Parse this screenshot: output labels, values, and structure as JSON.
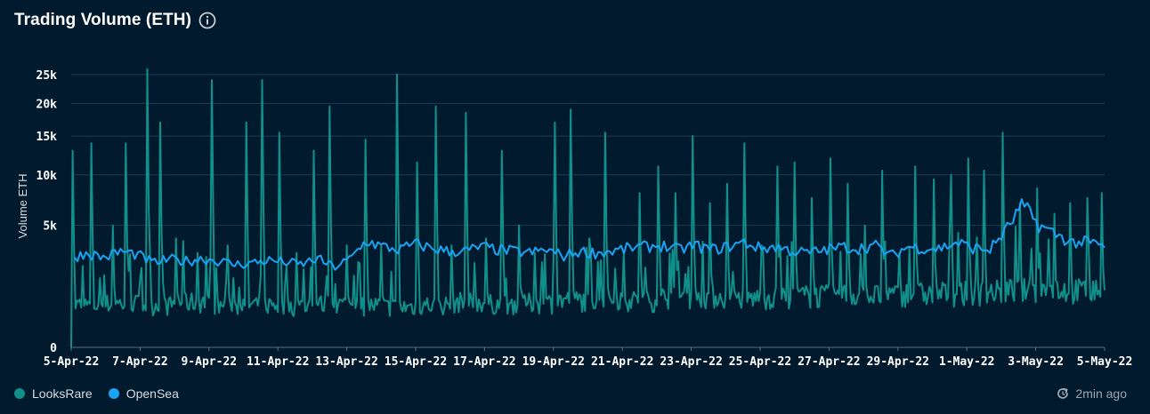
{
  "header": {
    "title": "Trading Volume (ETH)",
    "info_icon": "info-icon"
  },
  "footer": {
    "updated_text": "2min ago",
    "refresh_icon": "refresh-icon"
  },
  "colors": {
    "background": "#021a2d",
    "looksrare": "#118f8a",
    "opensea": "#1aa3f2",
    "grid": "#1d3a52",
    "axis": "#5a6e80"
  },
  "chart_data": {
    "type": "line",
    "title": "Trading Volume (ETH)",
    "xlabel": "",
    "ylabel": "Volume ETH",
    "y_scale": "sqrt",
    "ylim": [
      0,
      28000
    ],
    "y_ticks": [
      0,
      5000,
      10000,
      15000,
      20000,
      25000
    ],
    "y_tick_labels": [
      "0",
      "5k",
      "10k",
      "15k",
      "20k",
      "25k"
    ],
    "x_tick_labels": [
      "5-Apr-22",
      "7-Apr-22",
      "9-Apr-22",
      "11-Apr-22",
      "13-Apr-22",
      "15-Apr-22",
      "17-Apr-22",
      "19-Apr-22",
      "21-Apr-22",
      "23-Apr-22",
      "25-Apr-22",
      "27-Apr-22",
      "29-Apr-22",
      "1-May-22",
      "3-May-22",
      "5-May-22"
    ],
    "x_range_days": [
      0,
      30
    ],
    "grid": true,
    "legend_position": "bottom-left",
    "series": [
      {
        "name": "LooksRare",
        "color": "#118f8a",
        "baseline_by_day": [
          600,
          650,
          600,
          700,
          600,
          620,
          580,
          640,
          600,
          560,
          620,
          700,
          650,
          680,
          760,
          820,
          750,
          860,
          880,
          820,
          850,
          900,
          950,
          920,
          980,
          1000,
          1050,
          1100,
          1150,
          1100,
          1050
        ],
        "spike_days": [
          0.05,
          0.6,
          1.2,
          1.6,
          2.2,
          2.6,
          3.05,
          3.25,
          3.65,
          4.1,
          4.55,
          5.1,
          5.55,
          6.05,
          6.55,
          7.05,
          7.5,
          8.0,
          8.55,
          9.0,
          9.45,
          10.05,
          10.6,
          11.05,
          11.45,
          12.05,
          12.5,
          13.0,
          13.45,
          14.05,
          14.5,
          15.05,
          15.5,
          16.05,
          16.5,
          17.05,
          17.55,
          18.05,
          18.55,
          19.05,
          19.55,
          20.05,
          20.5,
          21.0,
          21.5,
          22.05,
          22.55,
          23.05,
          23.55,
          24.05,
          24.5,
          25.05,
          25.55,
          26.05,
          26.5,
          27.05,
          27.55,
          28.05,
          28.55,
          29.0,
          29.5,
          29.9
        ],
        "spike_values": [
          13000,
          14000,
          5000,
          14000,
          26000,
          17000,
          4000,
          3800,
          3000,
          24000,
          3500,
          17000,
          24000,
          15500,
          3000,
          13000,
          19500,
          3500,
          14500,
          3500,
          25000,
          11500,
          19500,
          3500,
          18500,
          4000,
          13000,
          5000,
          3000,
          17000,
          19000,
          4000,
          15500,
          3000,
          8000,
          11000,
          8000,
          15000,
          7000,
          9000,
          14000,
          3500,
          11000,
          11500,
          7500,
          12000,
          9000,
          5000,
          10500,
          3000,
          11000,
          9500,
          10000,
          12000,
          10500,
          15500,
          7000,
          8500,
          6000,
          7000,
          7500,
          8000
        ]
      },
      {
        "name": "OpenSea",
        "color": "#1aa3f2",
        "daily_volume": [
          2700,
          3000,
          2700,
          3100,
          2900,
          2400,
          2600,
          2500,
          2650,
          2500,
          2300,
          2400,
          2550,
          2450,
          2300,
          2650,
          2150,
          2600,
          3800,
          3400,
          3200,
          3600,
          3300,
          3100,
          3100,
          3400,
          3200,
          3100,
          3000,
          3200,
          2800,
          3100,
          3000,
          3100,
          3300,
          3400,
          3500,
          3200,
          3500,
          3200,
          3400,
          3700,
          3300,
          3400,
          3100,
          3000,
          3200,
          3400,
          3300,
          3500,
          2800,
          3400,
          3300,
          3300,
          3700,
          3300,
          3200,
          4600,
          6800,
          5000,
          4300,
          3700,
          3700,
          3400
        ]
      }
    ]
  },
  "legend": {
    "items": [
      {
        "label": "LooksRare",
        "color": "#118f8a"
      },
      {
        "label": "OpenSea",
        "color": "#1aa3f2"
      }
    ]
  }
}
